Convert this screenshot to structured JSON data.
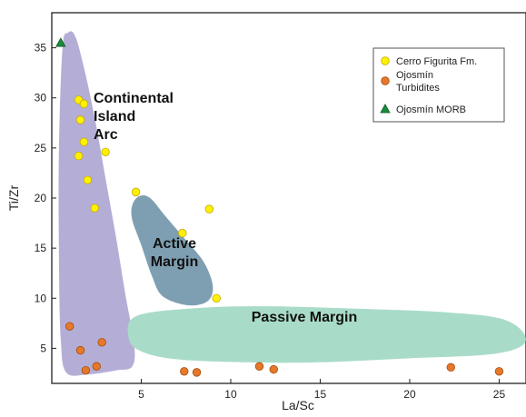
{
  "chart_data": {
    "type": "scatter",
    "xlabel": "La/Sc",
    "ylabel": "Ti/Zr",
    "xlim": [
      0,
      26.5
    ],
    "ylim": [
      1.5,
      38.5
    ],
    "x_ticks": [
      5,
      10,
      15,
      20,
      25
    ],
    "y_ticks": [
      5,
      10,
      15,
      20,
      25,
      30,
      35
    ],
    "x_tick_labels": [
      "5",
      "10",
      "15",
      "20",
      "25"
    ],
    "y_tick_labels": [
      "5",
      "10",
      "15",
      "20",
      "25",
      "30",
      "35"
    ],
    "grid": false,
    "legend_position": "top-right",
    "fields": [
      {
        "label_lines": [
          "Continental",
          "Island",
          "Arc"
        ],
        "color": "#b4aed6",
        "polygon": [
          [
            0.6,
            35.0
          ],
          [
            0.9,
            36.5
          ],
          [
            1.3,
            36.2
          ],
          [
            1.8,
            33.0
          ],
          [
            2.4,
            28.0
          ],
          [
            3.0,
            22.0
          ],
          [
            3.6,
            16.0
          ],
          [
            4.1,
            10.5
          ],
          [
            4.6,
            5.5
          ],
          [
            4.5,
            3.2
          ],
          [
            3.6,
            2.8
          ],
          [
            2.0,
            2.4
          ],
          [
            0.8,
            2.6
          ],
          [
            0.5,
            6.0
          ],
          [
            0.4,
            14.0
          ],
          [
            0.4,
            25.0
          ]
        ]
      },
      {
        "label_lines": [
          "Active",
          "Margin"
        ],
        "color": "#7e9fb2",
        "polygon": [
          [
            4.5,
            19.3
          ],
          [
            4.9,
            20.2
          ],
          [
            5.5,
            20.0
          ],
          [
            6.3,
            18.3
          ],
          [
            7.4,
            16.0
          ],
          [
            8.5,
            13.6
          ],
          [
            9.0,
            11.2
          ],
          [
            8.7,
            9.7
          ],
          [
            7.6,
            9.3
          ],
          [
            6.2,
            10.2
          ],
          [
            5.6,
            12.2
          ],
          [
            5.0,
            15.3
          ],
          [
            4.5,
            17.8
          ]
        ]
      },
      {
        "label_lines": [
          "Passive Margin"
        ],
        "color": "#a9dcc8",
        "polygon": [
          [
            4.7,
            8.2
          ],
          [
            8.0,
            9.0
          ],
          [
            12.0,
            9.2
          ],
          [
            18.0,
            8.9
          ],
          [
            22.0,
            8.6
          ],
          [
            25.0,
            8.0
          ],
          [
            26.3,
            6.7
          ],
          [
            26.3,
            5.3
          ],
          [
            24.5,
            4.4
          ],
          [
            20.0,
            4.0
          ],
          [
            15.0,
            3.6
          ],
          [
            11.0,
            3.6
          ],
          [
            7.0,
            3.9
          ],
          [
            5.0,
            4.7
          ],
          [
            4.3,
            6.0
          ]
        ]
      }
    ],
    "series": [
      {
        "name": "Cerro Figurita Fm.",
        "marker": "circle",
        "color": "#fff200",
        "stroke": "#c8a800",
        "x": [
          1.5,
          1.8,
          1.6,
          1.8,
          1.5,
          2.0,
          2.4,
          3.0,
          4.7,
          7.3,
          8.8,
          9.2
        ],
        "y": [
          29.8,
          29.4,
          27.8,
          25.6,
          24.2,
          21.8,
          19.0,
          24.6,
          20.6,
          16.5,
          18.9,
          10.0
        ]
      },
      {
        "name": "Ojosmín Turbidites",
        "marker": "circle",
        "color": "#e5782a",
        "stroke": "#a54e10",
        "x": [
          1.0,
          1.6,
          1.9,
          2.5,
          2.8,
          7.4,
          8.1,
          11.6,
          12.4,
          22.3,
          25.0
        ],
        "y": [
          7.2,
          4.8,
          2.8,
          3.2,
          5.6,
          2.7,
          2.6,
          3.2,
          2.9,
          3.1,
          2.7
        ]
      },
      {
        "name": "Ojosmín MORB",
        "marker": "triangle",
        "color": "#1a8a3c",
        "stroke": "#0c5c22",
        "x": [
          0.5
        ],
        "y": [
          35.5
        ]
      }
    ],
    "legend": [
      {
        "label_lines": [
          "Cerro Figurita Fm."
        ]
      },
      {
        "label_lines": [
          "Ojosmín",
          "Turbidites"
        ]
      },
      {
        "label_lines": [
          "Ojosmín MORB"
        ]
      }
    ]
  }
}
